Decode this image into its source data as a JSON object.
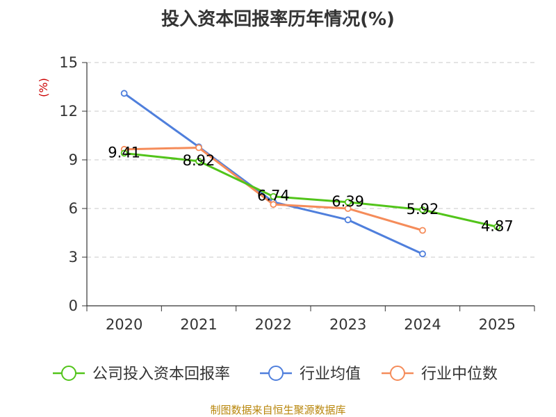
{
  "chart_data": {
    "type": "line",
    "title": "投入资本回报率历年情况(%)",
    "ylabel": "(%)",
    "xlabel": "",
    "categories": [
      "2020",
      "2021",
      "2022",
      "2023",
      "2024",
      "2025"
    ],
    "ylim": [
      0,
      15
    ],
    "yticks": [
      0,
      3,
      6,
      9,
      12,
      15
    ],
    "grid": true,
    "legend_position": "bottom",
    "series": [
      {
        "name": "公司投入资本回报率",
        "color": "#52c41a",
        "values": [
          9.41,
          8.92,
          6.74,
          6.39,
          5.92,
          4.87
        ],
        "labels": [
          "9.41",
          "8.92",
          "6.74",
          "6.39",
          "5.92",
          "4.87"
        ]
      },
      {
        "name": "行业均值",
        "color": "#4f7fdc",
        "values": [
          13.1,
          9.8,
          6.4,
          5.3,
          3.2,
          null
        ]
      },
      {
        "name": "行业中位数",
        "color": "#f58c5a",
        "values": [
          9.65,
          9.75,
          6.25,
          6.0,
          4.65,
          null
        ]
      }
    ]
  },
  "footer": {
    "source": "制图数据来自恒生聚源数据库"
  }
}
